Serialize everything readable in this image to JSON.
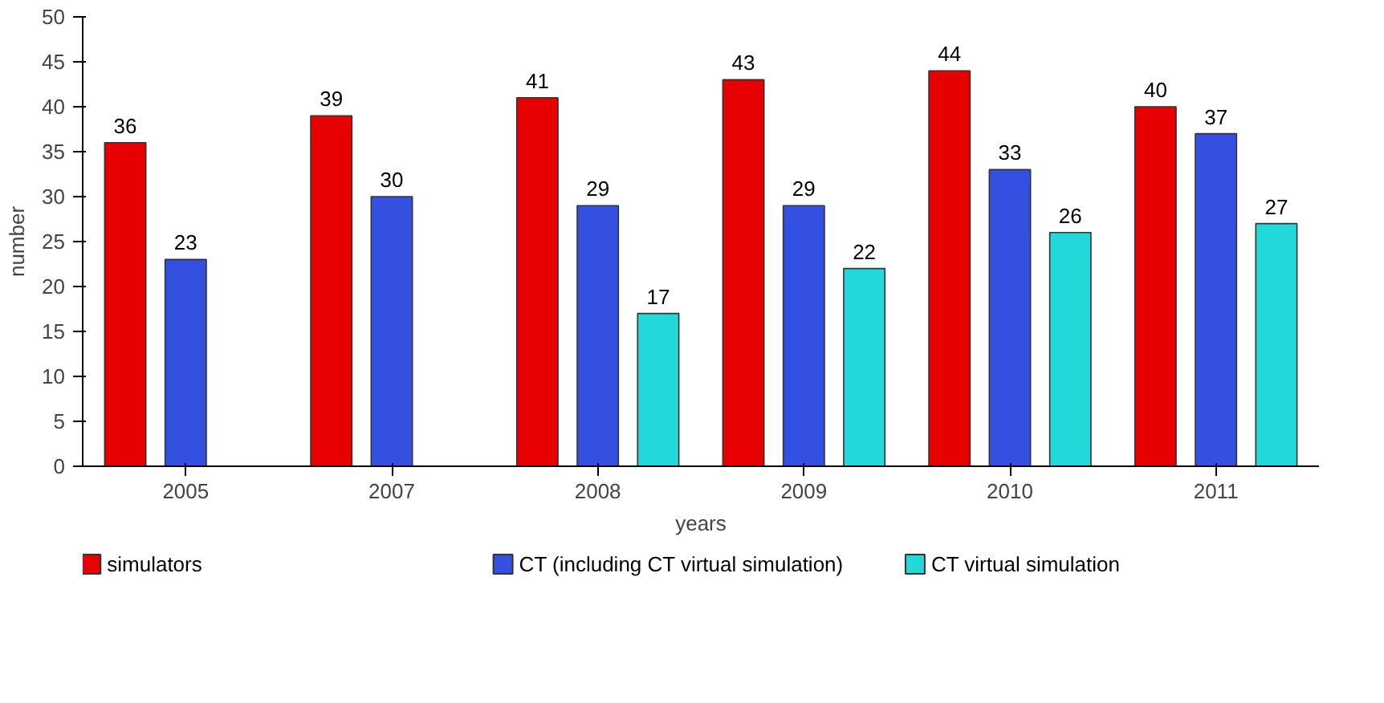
{
  "chart_data": {
    "type": "bar",
    "xlabel": "years",
    "ylabel": "number",
    "categories": [
      "2005",
      "2007",
      "2008",
      "2009",
      "2010",
      "2011"
    ],
    "series": [
      {
        "name": "simulators",
        "color": "#e60000",
        "values": [
          36,
          39,
          41,
          43,
          44,
          40
        ]
      },
      {
        "name": "CT (including CT virtual simulation)",
        "color": "#3350e0",
        "values": [
          23,
          30,
          29,
          29,
          33,
          37
        ]
      },
      {
        "name": "CT virtual simulation",
        "color": "#22d8d8",
        "values": [
          null,
          null,
          17,
          22,
          26,
          27
        ]
      }
    ],
    "ylim": [
      0,
      50
    ],
    "yticks": [
      0,
      5,
      10,
      15,
      20,
      25,
      30,
      35,
      40,
      45,
      50
    ],
    "grid": false,
    "legend": "bottom",
    "data_labels": true
  }
}
